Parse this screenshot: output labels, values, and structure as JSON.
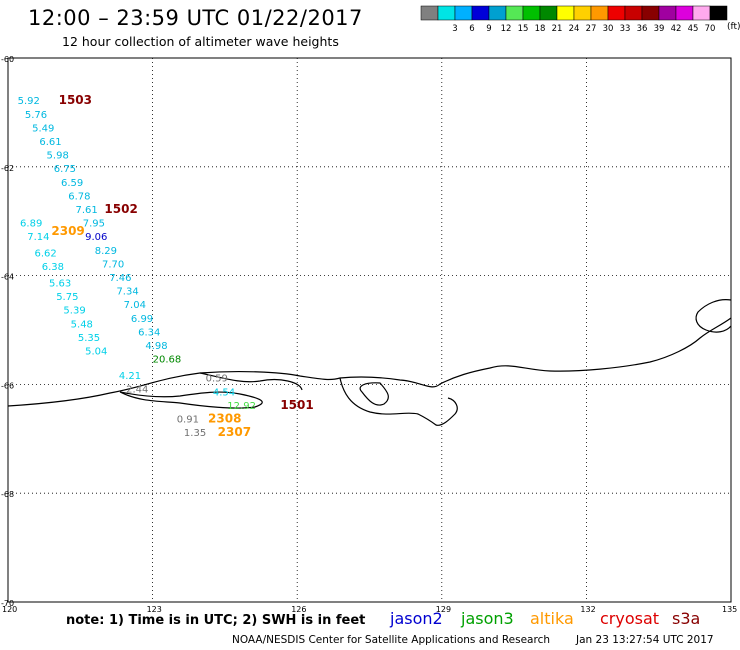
{
  "header": {
    "title": "12:00 – 23:59 UTC 01/22/2017",
    "subtitle": "12 hour collection of altimeter wave heights"
  },
  "color_scale": {
    "unit": "(ft)",
    "bins": [
      {
        "label": "",
        "color": "#808080"
      },
      {
        "label": "3",
        "color": "#00e5e5"
      },
      {
        "label": "6",
        "color": "#00b0ff"
      },
      {
        "label": "9",
        "color": "#0000d8"
      },
      {
        "label": "12",
        "color": "#00a0d0"
      },
      {
        "label": "15",
        "color": "#55e855"
      },
      {
        "label": "18",
        "color": "#00c000"
      },
      {
        "label": "21",
        "color": "#008800"
      },
      {
        "label": "24",
        "color": "#ffff00"
      },
      {
        "label": "27",
        "color": "#ffd000"
      },
      {
        "label": "30",
        "color": "#ff9900"
      },
      {
        "label": "33",
        "color": "#ee0000"
      },
      {
        "label": "36",
        "color": "#c80000"
      },
      {
        "label": "39",
        "color": "#880000"
      },
      {
        "label": "42",
        "color": "#a000a0"
      },
      {
        "label": "45",
        "color": "#dd00dd"
      },
      {
        "label": "70",
        "color": "#ffaaee"
      },
      {
        "label": "",
        "color": "#000000"
      }
    ]
  },
  "axes": {
    "lat_ticks": [
      "-60",
      "-62",
      "-64",
      "-66",
      "-68",
      "-70"
    ],
    "lon_ticks": [
      "120",
      "123",
      "126",
      "129",
      "132",
      "135"
    ],
    "lat_range": [
      -70,
      -60
    ],
    "lon_range": [
      120,
      135
    ],
    "grid": "dotted"
  },
  "wave_heights": [
    {
      "value": "5.92",
      "lat": -60.85,
      "lon": 120.2,
      "color": "#00b8e0"
    },
    {
      "value": "5.76",
      "lat": -61.1,
      "lon": 120.35,
      "color": "#00b8e0"
    },
    {
      "value": "5.49",
      "lat": -61.35,
      "lon": 120.5,
      "color": "#00b8e0"
    },
    {
      "value": "6.61",
      "lat": -61.6,
      "lon": 120.65,
      "color": "#00b8e0"
    },
    {
      "value": "5.98",
      "lat": -61.85,
      "lon": 120.8,
      "color": "#00b8e0"
    },
    {
      "value": "6.75",
      "lat": -62.1,
      "lon": 120.95,
      "color": "#00b8e0"
    },
    {
      "value": "6.59",
      "lat": -62.35,
      "lon": 121.1,
      "color": "#00b8e0"
    },
    {
      "value": "6.78",
      "lat": -62.6,
      "lon": 121.25,
      "color": "#00b8e0"
    },
    {
      "value": "7.61",
      "lat": -62.85,
      "lon": 121.4,
      "color": "#00b8e0"
    },
    {
      "value": "7.95",
      "lat": -63.1,
      "lon": 121.55,
      "color": "#00b8e0"
    },
    {
      "value": "9.06",
      "lat": -63.35,
      "lon": 121.6,
      "color": "#0000c8"
    },
    {
      "value": "8.29",
      "lat": -63.6,
      "lon": 121.8,
      "color": "#00b8e0"
    },
    {
      "value": "7.70",
      "lat": -63.85,
      "lon": 121.95,
      "color": "#00b8e0"
    },
    {
      "value": "7.46",
      "lat": -64.1,
      "lon": 122.1,
      "color": "#00b8e0"
    },
    {
      "value": "7.34",
      "lat": -64.35,
      "lon": 122.25,
      "color": "#00b8e0"
    },
    {
      "value": "7.04",
      "lat": -64.6,
      "lon": 122.4,
      "color": "#00b8e0"
    },
    {
      "value": "6.99",
      "lat": -64.85,
      "lon": 122.55,
      "color": "#00b8e0"
    },
    {
      "value": "6.34",
      "lat": -65.1,
      "lon": 122.7,
      "color": "#00b8e0"
    },
    {
      "value": "4.98",
      "lat": -65.35,
      "lon": 122.85,
      "color": "#00b8e0"
    },
    {
      "value": "20.68",
      "lat": -65.6,
      "lon": 123.0,
      "color": "#008800"
    },
    {
      "value": "6.89",
      "lat": -63.1,
      "lon": 120.25,
      "color": "#00d0e8"
    },
    {
      "value": "7.14",
      "lat": -63.35,
      "lon": 120.4,
      "color": "#00d0e8"
    },
    {
      "value": "6.62",
      "lat": -63.65,
      "lon": 120.55,
      "color": "#00d0e8"
    },
    {
      "value": "6.38",
      "lat": -63.9,
      "lon": 120.7,
      "color": "#00d0e8"
    },
    {
      "value": "5.63",
      "lat": -64.2,
      "lon": 120.85,
      "color": "#00d0e8"
    },
    {
      "value": "5.75",
      "lat": -64.45,
      "lon": 121.0,
      "color": "#00d0e8"
    },
    {
      "value": "5.39",
      "lat": -64.7,
      "lon": 121.15,
      "color": "#00d0e8"
    },
    {
      "value": "5.48",
      "lat": -64.95,
      "lon": 121.3,
      "color": "#00d0e8"
    },
    {
      "value": "5.35",
      "lat": -65.2,
      "lon": 121.45,
      "color": "#00d0e8"
    },
    {
      "value": "5.04",
      "lat": -65.45,
      "lon": 121.6,
      "color": "#00d0e8"
    },
    {
      "value": "4.21",
      "lat": -65.9,
      "lon": 122.3,
      "color": "#00d0e8"
    },
    {
      "value": "2.44",
      "lat": -66.15,
      "lon": 122.45,
      "color": "#707070"
    },
    {
      "value": "0.59",
      "lat": -65.95,
      "lon": 124.1,
      "color": "#707070"
    },
    {
      "value": "4.54",
      "lat": -66.2,
      "lon": 124.25,
      "color": "#00d0e8"
    },
    {
      "value": "12.92",
      "lat": -66.45,
      "lon": 124.55,
      "color": "#44dd44"
    },
    {
      "value": "0.91",
      "lat": -66.7,
      "lon": 123.5,
      "color": "#707070"
    },
    {
      "value": "1.35",
      "lat": -66.95,
      "lon": 123.65,
      "color": "#707070"
    }
  ],
  "tracks": [
    {
      "label": "1503",
      "lat": -60.85,
      "lon": 121.05,
      "color": "#880000"
    },
    {
      "label": "1502",
      "lat": -62.85,
      "lon": 122.0,
      "color": "#880000"
    },
    {
      "label": "2309",
      "lat": -63.25,
      "lon": 120.9,
      "color": "#ff9900"
    },
    {
      "label": "1501",
      "lat": -66.45,
      "lon": 125.65,
      "color": "#880000"
    },
    {
      "label": "2308",
      "lat": -66.7,
      "lon": 124.15,
      "color": "#ff9900"
    },
    {
      "label": "2307",
      "lat": -66.95,
      "lon": 124.35,
      "color": "#ff9900"
    }
  ],
  "notes": {
    "note": "note: 1) Time is in UTC; 2) SWH is in feet",
    "satellites": [
      {
        "name": "jason2",
        "color": "#0000d0"
      },
      {
        "name": "jason3",
        "color": "#00a000"
      },
      {
        "name": "altika",
        "color": "#ff9900"
      },
      {
        "name": "cryosat",
        "color": "#dd0000"
      },
      {
        "name": "s3a",
        "color": "#880000"
      }
    ],
    "credit": "NOAA/NESDIS Center for Satellite Applications and Research",
    "timestamp": "Jan 23 13:27:54 UTC 2017"
  }
}
